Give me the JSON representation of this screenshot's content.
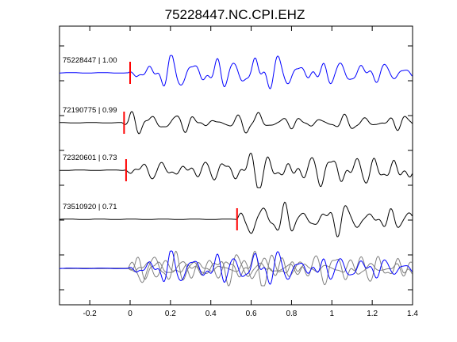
{
  "chart_data": {
    "type": "line",
    "title": "75228447.NC.CPI.EHZ",
    "xlabel": "",
    "ylabel": "",
    "xlim": [
      -0.35,
      1.4
    ],
    "x_ticks": [
      -0.2,
      0,
      0.2,
      0.4,
      0.6,
      0.8,
      1,
      1.2,
      1.4
    ],
    "x_tick_labels": [
      "-0.2",
      "0",
      "0.2",
      "0.4",
      "0.6",
      "0.8",
      "1",
      "1.2",
      "1.4"
    ],
    "grid": false,
    "series": [
      {
        "name": "75228447 | 1.00",
        "color": "#0000ff",
        "pick_time": 0.0,
        "onset": -0.01
      },
      {
        "name": "72190775 | 0.99",
        "color": "#000000",
        "pick_time": -0.03,
        "onset": -0.04
      },
      {
        "name": "72320601 | 0.73",
        "color": "#000000",
        "pick_time": -0.02,
        "onset": -0.03
      },
      {
        "name": "73510920 | 0.71",
        "color": "#000000",
        "pick_time": 0.53,
        "onset": 0.53
      }
    ],
    "stack": {
      "overlay_of": [
        1,
        2,
        3
      ],
      "highlight": 0
    }
  },
  "colors": {
    "pick": "#ff0000",
    "reference_trace": "#0000ff",
    "trace": "#000000",
    "overlay": "#808080"
  }
}
